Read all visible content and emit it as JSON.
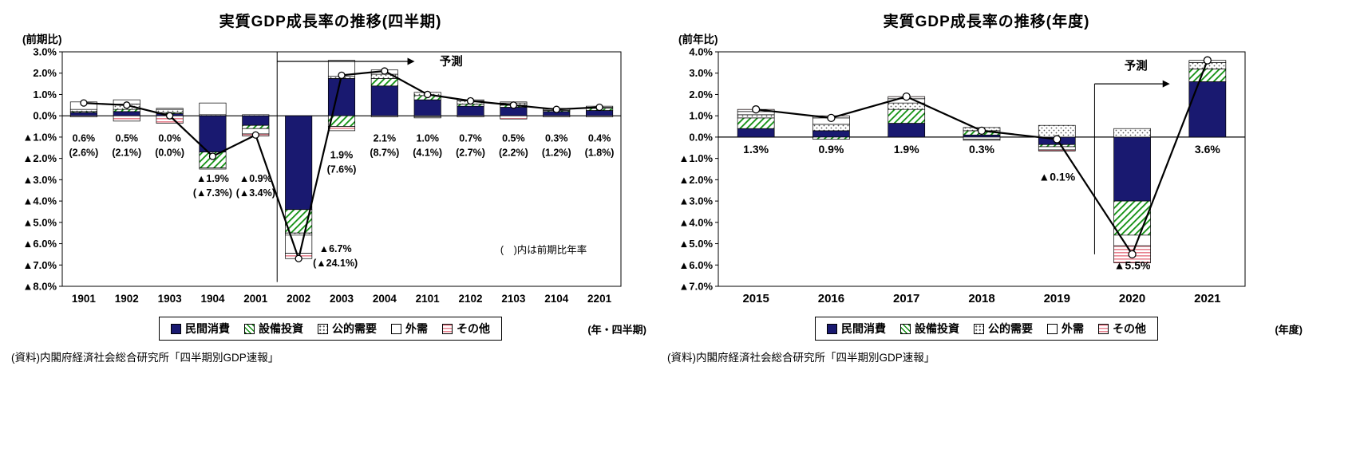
{
  "styles": {
    "navy": "#191970",
    "hatch_green": "#109010",
    "dot_color": "#555555",
    "stripe_pink": "#e8828f",
    "bar_stroke": "#000000",
    "line_color": "#000000"
  },
  "chart_data": [
    {
      "id": "q",
      "type": "stacked-bar+line",
      "title": "実質GDP成長率の推移(四半期)",
      "unit_label": "(前期比)",
      "axis_caption": "(年・四半期)",
      "source": "(資料)内閣府経済社会総合研究所「四半期別GDP速報」",
      "legend_position": "bottom",
      "ylim": [
        -8,
        3
      ],
      "ytick_step": 1,
      "categories": [
        "1901",
        "1902",
        "1903",
        "1904",
        "2001",
        "2002",
        "2003",
        "2004",
        "2101",
        "2102",
        "2103",
        "2104",
        "2201"
      ],
      "series": [
        {
          "name": "民間消費",
          "key": "private-consumption",
          "style": "solid",
          "values": [
            0.15,
            0.2,
            0.1,
            -1.7,
            -0.45,
            -4.4,
            1.75,
            1.4,
            0.75,
            0.45,
            0.4,
            0.2,
            0.25
          ]
        },
        {
          "name": "設備投資",
          "key": "capital-investment",
          "style": "hatch",
          "values": [
            0.05,
            0.1,
            0.05,
            -0.75,
            -0.15,
            -1.1,
            -0.5,
            0.35,
            0.2,
            0.1,
            0.1,
            0.05,
            0.1
          ]
        },
        {
          "name": "公的需要",
          "key": "public-demand",
          "style": "dots",
          "values": [
            0.1,
            0.25,
            0.15,
            0.05,
            0.05,
            -0.1,
            0.1,
            0.2,
            0.15,
            0.15,
            0.1,
            0.05,
            0.05
          ]
        },
        {
          "name": "外需",
          "key": "external-demand",
          "style": "plain",
          "values": [
            0.35,
            0.2,
            0.05,
            0.55,
            -0.25,
            -0.85,
            0.75,
            0.2,
            -0.05,
            0.05,
            0.05,
            0.05,
            0.05
          ]
        },
        {
          "name": "その他",
          "key": "others",
          "style": "hstripe",
          "values": [
            -0.05,
            -0.25,
            -0.35,
            -0.05,
            -0.1,
            -0.25,
            -0.2,
            -0.05,
            -0.05,
            -0.05,
            -0.15,
            -0.05,
            -0.05
          ]
        }
      ],
      "line": {
        "name": "実質GDP成長率(前期比)",
        "values": [
          0.6,
          0.5,
          0.0,
          -1.9,
          -0.9,
          -6.7,
          1.9,
          2.1,
          1.0,
          0.7,
          0.5,
          0.3,
          0.4
        ]
      },
      "point_labels": [
        {
          "main": "0.6%",
          "sub": "(2.6%)",
          "y": -1.2,
          "dx": 0
        },
        {
          "main": "0.5%",
          "sub": "(2.1%)",
          "y": -1.2,
          "dx": 0
        },
        {
          "main": "0.0%",
          "sub": "(0.0%)",
          "y": -1.2,
          "dx": 0
        },
        {
          "main": "▲1.9%",
          "sub": "(▲7.3%)",
          "y": -3.1,
          "dx": 0
        },
        {
          "main": "▲0.9%",
          "sub": "(▲3.4%)",
          "y": -3.1,
          "dx": 0
        },
        {
          "main": "▲6.7%",
          "sub": "(▲24.1%)",
          "y": -6.4,
          "dx": 46
        },
        {
          "main": "1.9%",
          "sub": "(7.6%)",
          "y": -2.0,
          "dx": 0
        },
        {
          "main": "2.1%",
          "sub": "(8.7%)",
          "y": -1.2,
          "dx": 0
        },
        {
          "main": "1.0%",
          "sub": "(4.1%)",
          "y": -1.2,
          "dx": 0
        },
        {
          "main": "0.7%",
          "sub": "(2.7%)",
          "y": -1.2,
          "dx": 0
        },
        {
          "main": "0.5%",
          "sub": "(2.2%)",
          "y": -1.2,
          "dx": 0
        },
        {
          "main": "0.3%",
          "sub": "(1.2%)",
          "y": -1.2,
          "dx": 0
        },
        {
          "main": "0.4%",
          "sub": "(1.8%)",
          "y": -1.2,
          "dx": 0
        }
      ],
      "forecast": {
        "label": "予測",
        "boundary": 5,
        "line_y1": 3.0,
        "line_y2": -7.8,
        "arrow_y": 2.55,
        "arrow_to": 8.2,
        "label_x": 9.05,
        "label_y": 2.55
      },
      "note": {
        "text": "(　)内は前期比年率",
        "x": 11.2,
        "y": -6.45
      }
    },
    {
      "id": "a",
      "type": "stacked-bar+line",
      "title": "実質GDP成長率の推移(年度)",
      "unit_label": "(前年比)",
      "axis_caption": "(年度)",
      "source": "(資料)内閣府経済社会総合研究所「四半期別GDP速報」",
      "legend_position": "bottom",
      "ylim": [
        -7,
        4
      ],
      "ytick_step": 1,
      "categories": [
        "2015",
        "2016",
        "2017",
        "2018",
        "2019",
        "2020",
        "2021"
      ],
      "series": [
        {
          "name": "民間消費",
          "key": "private-consumption",
          "style": "solid",
          "values": [
            0.4,
            0.3,
            0.65,
            0.1,
            -0.35,
            -3.0,
            2.6
          ]
        },
        {
          "name": "設備投資",
          "key": "capital-investment",
          "style": "hatch",
          "values": [
            0.5,
            -0.1,
            0.65,
            0.2,
            -0.1,
            -1.6,
            0.6
          ]
        },
        {
          "name": "公的需要",
          "key": "public-demand",
          "style": "dots",
          "values": [
            0.15,
            0.3,
            0.3,
            0.15,
            0.55,
            0.4,
            0.3
          ]
        },
        {
          "name": "外需",
          "key": "external-demand",
          "style": "plain",
          "values": [
            0.15,
            0.3,
            0.2,
            -0.1,
            -0.15,
            -0.5,
            0.1
          ]
        },
        {
          "name": "その他",
          "key": "others",
          "style": "hstripe",
          "values": [
            0.1,
            0.1,
            0.1,
            -0.05,
            -0.05,
            -0.8,
            0.0
          ]
        }
      ],
      "line": {
        "name": "実質GDP成長率(前年比)",
        "values": [
          1.3,
          0.9,
          1.9,
          0.3,
          -0.1,
          -5.5,
          3.6
        ]
      },
      "point_labels": [
        {
          "main": "1.3%",
          "sub": null,
          "y": -0.75,
          "dx": 0
        },
        {
          "main": "0.9%",
          "sub": null,
          "y": -0.75,
          "dx": 0
        },
        {
          "main": "1.9%",
          "sub": null,
          "y": -0.75,
          "dx": 0
        },
        {
          "main": "0.3%",
          "sub": null,
          "y": -0.75,
          "dx": 0
        },
        {
          "main": "▲0.1%",
          "sub": null,
          "y": -2.05,
          "dx": 0
        },
        {
          "main": "▲5.5%",
          "sub": null,
          "y": -6.2,
          "dx": 0
        },
        {
          "main": "3.6%",
          "sub": null,
          "y": -0.75,
          "dx": 0
        }
      ],
      "forecast": {
        "label": "予測",
        "boundary": 5,
        "line_y1": 2.5,
        "line_y2": -5.5,
        "arrow_y": 2.5,
        "arrow_to": 6.0,
        "label_x": 5.55,
        "label_y": 3.35
      },
      "note": null
    }
  ]
}
